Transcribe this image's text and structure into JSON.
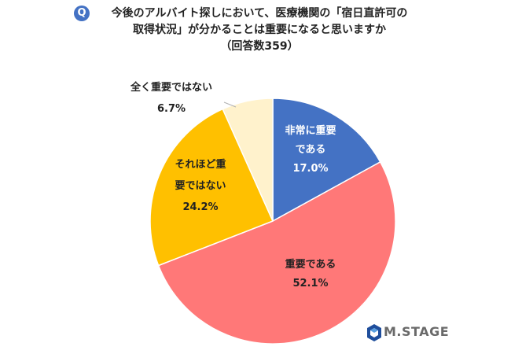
{
  "question": {
    "badge": "Q",
    "line1": "今後のアルバイト探しにおいて、医療機関の「宿日直許可の",
    "line2": "取得状況」が分かることは重要になると思いますか",
    "line3": "（回答数359）"
  },
  "logo": {
    "text": "M.STAGE",
    "color": "#1f4e9c"
  },
  "chart_data": {
    "type": "pie",
    "start_angle_deg": 0,
    "direction": "clockwise",
    "slices": [
      {
        "label_lines": [
          "非常に重要",
          "である"
        ],
        "value": 17.0,
        "value_text": "17.0%",
        "color": "#4472c4",
        "label_color": "#ffffff"
      },
      {
        "label_lines": [
          "重要である"
        ],
        "value": 52.1,
        "value_text": "52.1%",
        "color": "#ff7878",
        "label_color": "#222222"
      },
      {
        "label_lines": [
          "それほど重",
          "要ではない"
        ],
        "value": 24.2,
        "value_text": "24.2%",
        "color": "#ffc000",
        "label_color": "#222222"
      },
      {
        "label_lines": [
          "全く重要ではない"
        ],
        "value": 6.7,
        "value_text": "6.7%",
        "color": "#fff2cc",
        "label_color": "#222222"
      }
    ]
  }
}
